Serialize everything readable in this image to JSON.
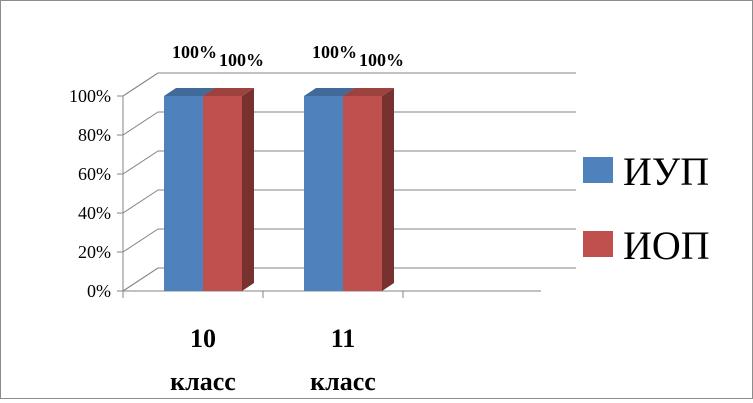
{
  "chart_data": {
    "type": "bar",
    "variant": "3d-clustered-column",
    "categories": [
      [
        "10",
        "класс"
      ],
      [
        "11",
        "класс"
      ]
    ],
    "series": [
      {
        "name": "ИУП",
        "values": [
          100,
          100
        ],
        "color": "#4F81BD"
      },
      {
        "name": "ИОП",
        "values": [
          100,
          100
        ],
        "color": "#C0504D"
      }
    ],
    "data_labels": [
      [
        "100%",
        "100%"
      ],
      [
        "100%",
        "100%"
      ]
    ],
    "y_ticks": [
      "0%",
      "20%",
      "40%",
      "60%",
      "80%",
      "100%"
    ],
    "ylim": [
      0,
      100
    ],
    "grid": true,
    "legend_position": "right"
  }
}
